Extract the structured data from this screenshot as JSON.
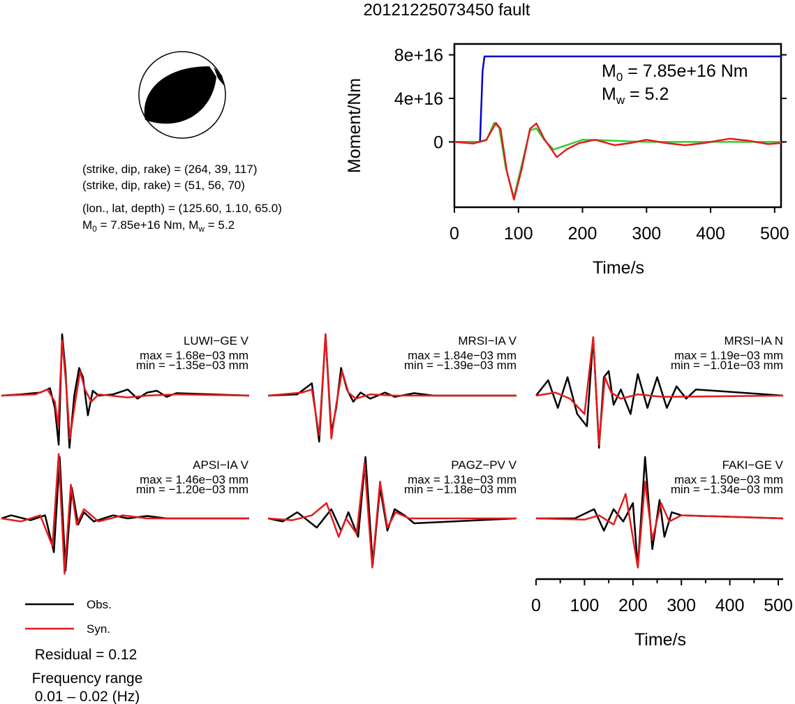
{
  "title": "20121225073450 fault",
  "focal_mechanism": {
    "plane1": "(strike, dip, rake) = (264, 39, 117)",
    "plane2": "(strike, dip, rake) = (51, 56, 70)",
    "location": "(lon., lat, depth) = (125.60, 1.10, 65.0)",
    "moment_line": {
      "m": "M",
      "sub0": "0",
      "m0_value": " = 7.85e+16 Nm, M",
      "subw": "w",
      "mw_value": " = 5.2"
    }
  },
  "moment_panel": {
    "ylabel": "Moment/Nm",
    "xlabel": "Time/s",
    "ytick_labels": [
      "0",
      "4e+16",
      "8e+16"
    ],
    "xtick_labels": [
      "0",
      "100",
      "200",
      "300",
      "400",
      "500"
    ],
    "annotation": {
      "m0_prefix": "M",
      "m0_sub": "0",
      "m0_value": " = 7.85e+16 Nm",
      "mw_prefix": "M",
      "mw_sub": "w",
      "mw_value": " = 5.2"
    }
  },
  "waveform_axis": {
    "xlabel": "Time/s",
    "xtick_labels": [
      "0",
      "100",
      "200",
      "300",
      "400",
      "500"
    ]
  },
  "legend": {
    "items": [
      {
        "label": "Obs.",
        "color": "#000000"
      },
      {
        "label": "Syn.",
        "color": "#e41a1c"
      }
    ]
  },
  "residual": "Residual = 0.12",
  "frequency_range": {
    "label": "Frequency range",
    "value": "0.01 – 0.02 (Hz)"
  },
  "colors": {
    "observed": "#000000",
    "synthetic": "#e41a1c",
    "moment_cumulative": "#0000cc",
    "moment_rate": "#33cc33",
    "moment_rate_alt": "#e41a1c"
  },
  "chart_data": [
    {
      "type": "line",
      "name": "moment",
      "xlim": [
        0,
        510
      ],
      "ylim": [
        -6e+16,
        9e+16
      ],
      "xlabel": "Time/s",
      "ylabel": "Moment/Nm",
      "yticks": [
        0,
        4e+16,
        8e+16
      ],
      "xticks": [
        0,
        100,
        200,
        300,
        400,
        500
      ],
      "series": [
        {
          "color": "#0000cc",
          "points": [
            [
              0,
              0
            ],
            [
              40,
              0
            ],
            [
              44,
              6.5e+16
            ],
            [
              47,
              7.85e+16
            ],
            [
              510,
              7.85e+16
            ]
          ]
        },
        {
          "color": "#33cc33",
          "points": [
            [
              0,
              0
            ],
            [
              40,
              0
            ],
            [
              50,
              1500000000000000.0
            ],
            [
              62,
              1.75e+16
            ],
            [
              70,
              1.3e+16
            ],
            [
              80,
              -2.3e+16
            ],
            [
              93,
              -5.1e+16
            ],
            [
              104,
              -2.4e+16
            ],
            [
              118,
              1.05e+16
            ],
            [
              128,
              1.25e+16
            ],
            [
              140,
              2000000000000000.0
            ],
            [
              155,
              -7000000000000000.0
            ],
            [
              175,
              -3000000000000000.0
            ],
            [
              200,
              2000000000000000.0
            ],
            [
              220,
              1800000000000000.0
            ],
            [
              250,
              1000000000000000.0
            ],
            [
              300,
              0.0
            ],
            [
              510,
              0
            ]
          ]
        },
        {
          "color": "#e41a1c",
          "points": [
            [
              0,
              0
            ],
            [
              30,
              -1500000000000000.0
            ],
            [
              50,
              2000000000000000.0
            ],
            [
              65,
              1.75e+16
            ],
            [
              72,
              1.2e+16
            ],
            [
              82,
              -2.7e+16
            ],
            [
              93,
              -5.3e+16
            ],
            [
              105,
              -2.5e+16
            ],
            [
              118,
              1.2e+16
            ],
            [
              128,
              1.7e+16
            ],
            [
              140,
              3000000000000000.0
            ],
            [
              160,
              -1.4e+16
            ],
            [
              175,
              -7000000000000000.0
            ],
            [
              195,
              -1000000000000000.0
            ],
            [
              220,
              2000000000000000.0
            ],
            [
              250,
              -3000000000000000.0
            ],
            [
              275,
              -1000000000000000.0
            ],
            [
              300,
              2000000000000000.0
            ],
            [
              330,
              -1000000000000000.0
            ],
            [
              360,
              -3000000000000000.0
            ],
            [
              390,
              -1000000000000000.0
            ],
            [
              430,
              3000000000000000.0
            ],
            [
              460,
              1000000000000000.0
            ],
            [
              490,
              -2000000000000000.0
            ],
            [
              510,
              -1000000000000000.0
            ]
          ]
        }
      ]
    },
    {
      "type": "line",
      "name": "waveforms",
      "xlim": [
        0,
        510
      ],
      "stations": [
        {
          "label": "LUWI−GE V",
          "max": "max = 1.68e−03 mm",
          "min": "min = −1.35e−03 mm",
          "obs": [
            [
              0,
              0.0
            ],
            [
              40,
              0.02
            ],
            [
              80,
              0.05
            ],
            [
              100,
              0.12
            ],
            [
              110,
              -0.2
            ],
            [
              118,
              -0.8
            ],
            [
              125,
              1.0
            ],
            [
              132,
              0.4
            ],
            [
              140,
              -0.85
            ],
            [
              150,
              0.0
            ],
            [
              160,
              0.45
            ],
            [
              168,
              0.3
            ],
            [
              178,
              -0.32
            ],
            [
              188,
              0.08
            ],
            [
              200,
              0.0
            ],
            [
              230,
              0.02
            ],
            [
              260,
              0.1
            ],
            [
              280,
              -0.05
            ],
            [
              300,
              0.05
            ],
            [
              320,
              0.08
            ],
            [
              340,
              -0.02
            ],
            [
              360,
              0.04
            ],
            [
              510,
              0.0
            ]
          ],
          "syn": [
            [
              0,
              0.0
            ],
            [
              70,
              0.02
            ],
            [
              95,
              0.1
            ],
            [
              110,
              -0.1
            ],
            [
              117,
              -0.5
            ],
            [
              125,
              0.9
            ],
            [
              133,
              0.2
            ],
            [
              141,
              -0.7
            ],
            [
              152,
              -0.1
            ],
            [
              162,
              0.4
            ],
            [
              172,
              0.1
            ],
            [
              185,
              -0.1
            ],
            [
              200,
              0.02
            ],
            [
              260,
              -0.03
            ],
            [
              300,
              0.0
            ],
            [
              360,
              0.02
            ],
            [
              510,
              0.0
            ]
          ]
        },
        {
          "label": "MRSI−IA V",
          "max": "max = 1.84e−03 mm",
          "min": "min = −1.39e−03 mm",
          "obs": [
            [
              0,
              0.0
            ],
            [
              60,
              0.02
            ],
            [
              90,
              0.2
            ],
            [
              105,
              -0.75
            ],
            [
              118,
              1.0
            ],
            [
              130,
              -0.6
            ],
            [
              140,
              -0.2
            ],
            [
              150,
              0.45
            ],
            [
              162,
              0.1
            ],
            [
              175,
              -0.1
            ],
            [
              190,
              0.05
            ],
            [
              210,
              -0.05
            ],
            [
              240,
              0.05
            ],
            [
              260,
              -0.02
            ],
            [
              300,
              0.04
            ],
            [
              340,
              0.0
            ],
            [
              510,
              0.0
            ]
          ],
          "syn": [
            [
              0,
              0.0
            ],
            [
              70,
              0.05
            ],
            [
              90,
              0.1
            ],
            [
              105,
              -0.65
            ],
            [
              118,
              1.0
            ],
            [
              130,
              -0.7
            ],
            [
              140,
              -0.15
            ],
            [
              152,
              0.4
            ],
            [
              165,
              0.05
            ],
            [
              180,
              -0.05
            ],
            [
              210,
              0.02
            ],
            [
              260,
              0.0
            ],
            [
              510,
              0.0
            ]
          ]
        },
        {
          "label": "MRSI−IA N",
          "max": "max = 1.19e−03 mm",
          "min": "min = −1.01e−03 mm",
          "obs": [
            [
              0,
              0.0
            ],
            [
              25,
              0.25
            ],
            [
              45,
              -0.2
            ],
            [
              65,
              0.3
            ],
            [
              85,
              -0.3
            ],
            [
              105,
              -0.5
            ],
            [
              118,
              0.95
            ],
            [
              130,
              -0.85
            ],
            [
              140,
              0.3
            ],
            [
              150,
              0.4
            ],
            [
              160,
              -0.15
            ],
            [
              175,
              0.1
            ],
            [
              195,
              -0.3
            ],
            [
              210,
              0.35
            ],
            [
              230,
              -0.2
            ],
            [
              250,
              0.3
            ],
            [
              270,
              -0.2
            ],
            [
              290,
              0.15
            ],
            [
              310,
              -0.05
            ],
            [
              330,
              0.1
            ],
            [
              510,
              0.0
            ]
          ],
          "syn": [
            [
              0,
              0.0
            ],
            [
              40,
              0.05
            ],
            [
              70,
              -0.05
            ],
            [
              100,
              -0.3
            ],
            [
              118,
              0.95
            ],
            [
              130,
              -0.8
            ],
            [
              142,
              0.3
            ],
            [
              155,
              0.05
            ],
            [
              175,
              -0.05
            ],
            [
              210,
              0.02
            ],
            [
              260,
              -0.02
            ],
            [
              510,
              0.0
            ]
          ]
        },
        {
          "label": "APSI−IA V",
          "max": "max = 1.46e−03 mm",
          "min": "min = −1.20e−03 mm",
          "obs": [
            [
              0,
              0.0
            ],
            [
              20,
              0.05
            ],
            [
              60,
              -0.03
            ],
            [
              90,
              0.05
            ],
            [
              108,
              -0.55
            ],
            [
              120,
              1.0
            ],
            [
              132,
              -0.85
            ],
            [
              145,
              0.5
            ],
            [
              158,
              -0.1
            ],
            [
              170,
              0.1
            ],
            [
              190,
              -0.05
            ],
            [
              230,
              0.05
            ],
            [
              260,
              0.0
            ],
            [
              300,
              0.04
            ],
            [
              340,
              0.0
            ],
            [
              510,
              0.0
            ]
          ],
          "syn": [
            [
              0,
              0.0
            ],
            [
              40,
              -0.05
            ],
            [
              80,
              0.05
            ],
            [
              105,
              -0.45
            ],
            [
              118,
              1.05
            ],
            [
              130,
              -0.9
            ],
            [
              143,
              0.55
            ],
            [
              155,
              -0.1
            ],
            [
              170,
              0.15
            ],
            [
              200,
              -0.05
            ],
            [
              250,
              0.05
            ],
            [
              300,
              0.0
            ],
            [
              510,
              0.0
            ]
          ]
        },
        {
          "label": "PAGZ−PV V",
          "max": "max = 1.31e−03 mm",
          "min": "min = −1.18e−03 mm",
          "obs": [
            [
              0,
              0.0
            ],
            [
              30,
              -0.05
            ],
            [
              60,
              0.1
            ],
            [
              100,
              -0.15
            ],
            [
              130,
              0.15
            ],
            [
              150,
              -0.2
            ],
            [
              165,
              0.1
            ],
            [
              185,
              -0.3
            ],
            [
              200,
              1.0
            ],
            [
              215,
              -0.75
            ],
            [
              230,
              0.5
            ],
            [
              245,
              -0.2
            ],
            [
              260,
              0.15
            ],
            [
              280,
              0.05
            ],
            [
              300,
              -0.08
            ],
            [
              510,
              0.0
            ]
          ],
          "syn": [
            [
              0,
              0.0
            ],
            [
              50,
              -0.03
            ],
            [
              90,
              0.05
            ],
            [
              120,
              0.25
            ],
            [
              145,
              -0.3
            ],
            [
              160,
              0.0
            ],
            [
              182,
              -0.25
            ],
            [
              198,
              0.9
            ],
            [
              214,
              -0.8
            ],
            [
              230,
              0.6
            ],
            [
              245,
              -0.15
            ],
            [
              262,
              0.1
            ],
            [
              290,
              0.0
            ],
            [
              510,
              0.0
            ]
          ]
        },
        {
          "label": "FAKI−GE V",
          "max": "max = 1.50e−03 mm",
          "min": "min = −1.34e−03 mm",
          "obs": [
            [
              0,
              0.0
            ],
            [
              80,
              0.0
            ],
            [
              120,
              0.15
            ],
            [
              140,
              -0.2
            ],
            [
              160,
              0.15
            ],
            [
              180,
              -0.05
            ],
            [
              200,
              0.25
            ],
            [
              210,
              -0.8
            ],
            [
              225,
              1.0
            ],
            [
              240,
              -0.5
            ],
            [
              255,
              0.3
            ],
            [
              265,
              -0.3
            ],
            [
              280,
              0.1
            ],
            [
              300,
              0.05
            ],
            [
              510,
              0.0
            ]
          ],
          "syn": [
            [
              0,
              0.0
            ],
            [
              100,
              -0.02
            ],
            [
              130,
              0.05
            ],
            [
              160,
              -0.1
            ],
            [
              185,
              0.4
            ],
            [
              210,
              -0.8
            ],
            [
              225,
              0.6
            ],
            [
              240,
              -0.35
            ],
            [
              258,
              0.25
            ],
            [
              275,
              -0.05
            ],
            [
              300,
              0.05
            ],
            [
              510,
              0.0
            ]
          ]
        }
      ]
    }
  ]
}
